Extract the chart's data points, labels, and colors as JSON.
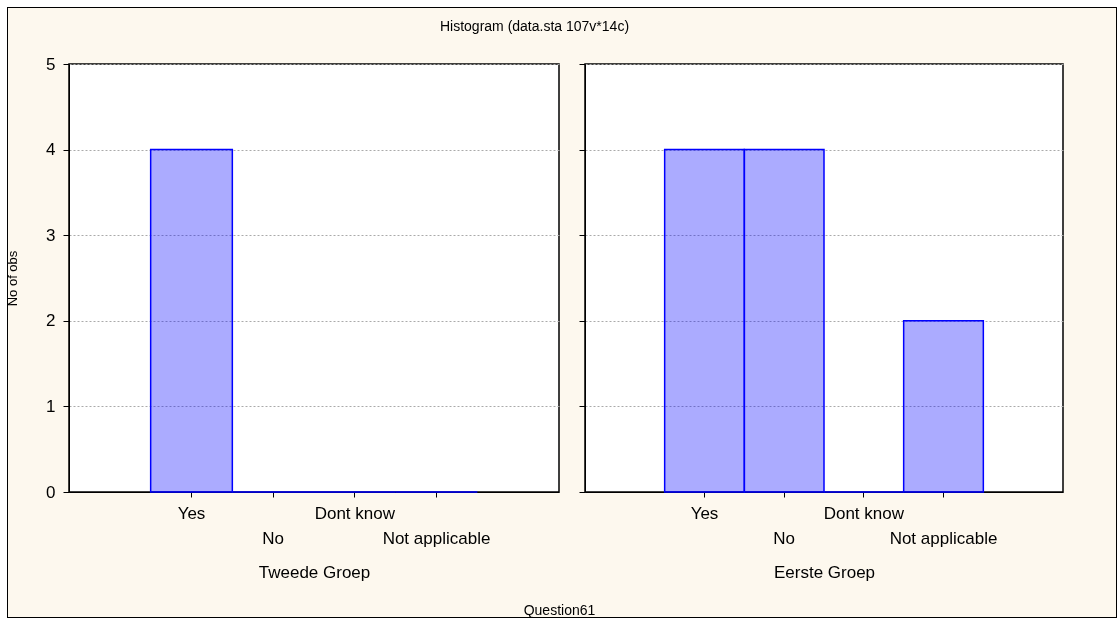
{
  "chart_data": [
    {
      "type": "bar",
      "title": "Histogram (data.sta 107v*14c)",
      "annotations": [
        "Question61"
      ],
      "xlabel": "Tweede Groep",
      "ylabel": "No of obs",
      "categories": [
        "Yes",
        "No",
        "Dont know",
        "Not applicable"
      ],
      "series": [
        {
          "color": "#0000ff",
          "values": [
            4,
            0,
            0,
            0
          ]
        }
      ],
      "ylim": [
        0,
        5
      ],
      "yticks": [
        0,
        1,
        2,
        3,
        4,
        5
      ],
      "grid": "y"
    },
    {
      "type": "bar",
      "xlabel": "Eerste Groep",
      "categories": [
        "Yes",
        "No",
        "Dont know",
        "Not applicable"
      ],
      "series": [
        {
          "color": "#0000ff",
          "values": [
            4,
            4,
            0,
            2
          ]
        }
      ],
      "ylim": [
        0,
        5
      ],
      "yticks": [
        0,
        1,
        2,
        3,
        4,
        5
      ],
      "grid": "y",
      "tick_labels": "x"
    }
  ]
}
